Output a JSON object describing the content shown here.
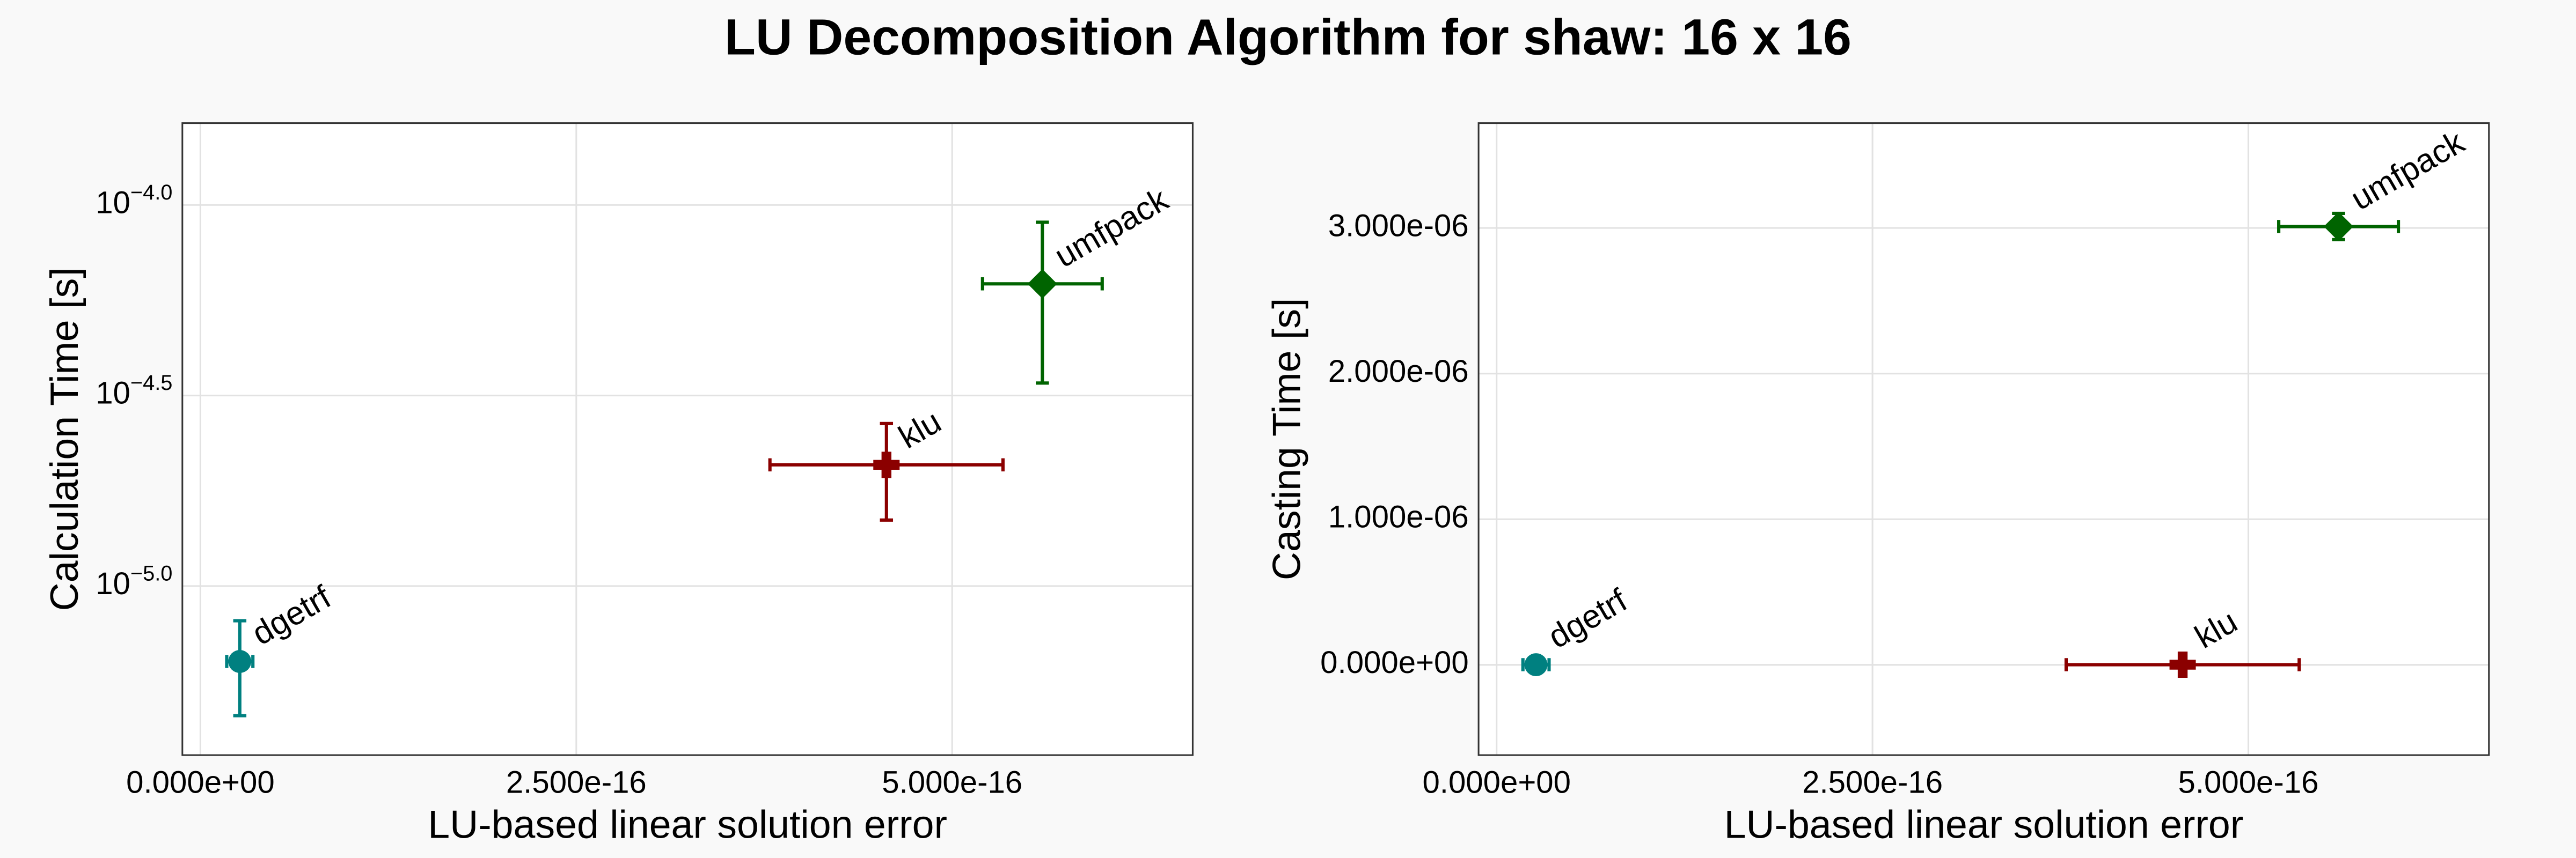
{
  "title": "LU Decomposition Algorithm for shaw: 16 x 16",
  "chart_data": [
    {
      "type": "scatter",
      "xlabel": "LU-based linear solution error",
      "ylabel": "Calculation Time [s]",
      "xlim": [
        -1.2e-17,
        6.6e-16
      ],
      "xticks": [
        {
          "value": 0,
          "label": "0.000e+00"
        },
        {
          "value": 2.5e-16,
          "label": "2.500e-16"
        },
        {
          "value": 5e-16,
          "label": "5.000e-16"
        }
      ],
      "yscale": "log",
      "ylim": [
        3.6e-06,
        0.000164
      ],
      "yticks": [
        {
          "value": 0.0001,
          "label": "10−4.0"
        },
        {
          "value": 3.1623e-05,
          "label": "10−4.5"
        },
        {
          "value": 1e-05,
          "label": "10−5.0"
        }
      ],
      "grid": true,
      "series": [
        {
          "name": "dgetrf",
          "color": "#008080",
          "marker": "circle",
          "x": [
            2.62e-17
          ],
          "values": [
            6.34e-06
          ],
          "xerr": [
            8.7e-18
          ],
          "yerr": [
            1.77e-06
          ]
        },
        {
          "name": "klu",
          "color": "#8b0000",
          "marker": "cross",
          "x": [
            4.563e-16
          ],
          "values": [
            2.08e-05
          ],
          "xerr": [
            7.75e-17
          ],
          "yerr": [
            5.9e-06
          ]
        },
        {
          "name": "umfpack",
          "color": "#006400",
          "marker": "diamond",
          "x": [
            5.6e-16
          ],
          "values": [
            6.21e-05
          ],
          "xerr": [
            3.98e-17
          ],
          "yerr": [
            2.8e-05
          ]
        }
      ]
    },
    {
      "type": "scatter",
      "xlabel": "LU-based linear solution error",
      "ylabel": "Casting Time [s]",
      "xlim": [
        -1.2e-17,
        6.6e-16
      ],
      "xticks": [
        {
          "value": 0,
          "label": "0.000e+00"
        },
        {
          "value": 2.5e-16,
          "label": "2.500e-16"
        },
        {
          "value": 5e-16,
          "label": "5.000e-16"
        }
      ],
      "ylim": [
        -6.2e-07,
        3.72e-06
      ],
      "yticks": [
        {
          "value": 0,
          "label": "0.000e+00"
        },
        {
          "value": 1e-06,
          "label": "1.000e-06"
        },
        {
          "value": 2e-06,
          "label": "2.000e-06"
        },
        {
          "value": 3e-06,
          "label": "3.000e-06"
        }
      ],
      "grid": true,
      "series": [
        {
          "name": "dgetrf",
          "color": "#008080",
          "marker": "circle",
          "x": [
            2.62e-17
          ],
          "values": [
            1e-09
          ],
          "xerr": [
            8.7e-18
          ],
          "yerr": [
            1e-09
          ]
        },
        {
          "name": "klu",
          "color": "#8b0000",
          "marker": "cross",
          "x": [
            4.563e-16
          ],
          "values": [
            1e-09
          ],
          "xerr": [
            7.75e-17
          ],
          "yerr": [
            1e-09
          ]
        },
        {
          "name": "umfpack",
          "color": "#006400",
          "marker": "diamond",
          "x": [
            5.6e-16
          ],
          "values": [
            3.01e-06
          ],
          "xerr": [
            3.98e-17
          ],
          "yerr": [
            9e-08
          ]
        }
      ]
    }
  ]
}
